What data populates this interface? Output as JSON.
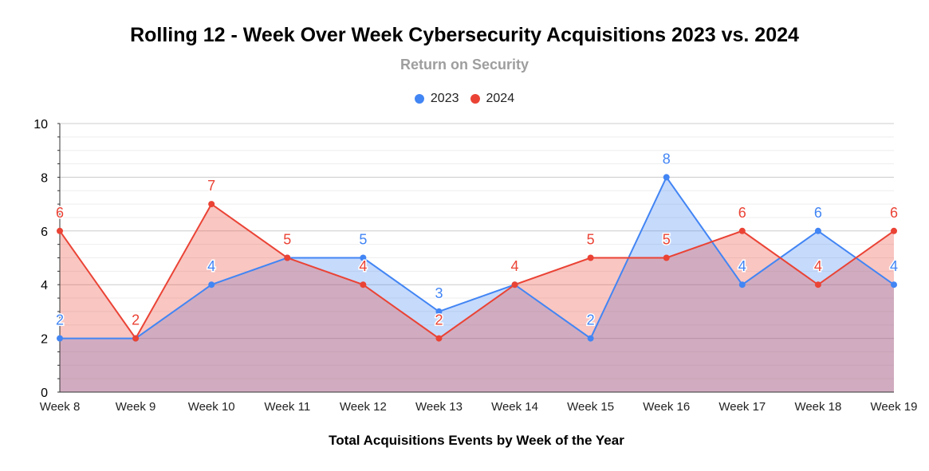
{
  "chart_data": {
    "type": "area",
    "title": "Rolling 12 - Week Over Week Cybersecurity Acquisitions 2023 vs. 2024",
    "subtitle": "Return on Security",
    "xlabel": "Total Acquisitions Events by Week of the Year",
    "ylabel": "",
    "ylim": [
      0,
      10
    ],
    "yticks": [
      0,
      2,
      4,
      6,
      8,
      10
    ],
    "grid": true,
    "legend_position": "top-center",
    "categories": [
      "Week 8",
      "Week 9",
      "Week 10",
      "Week 11",
      "Week 12",
      "Week 13",
      "Week 14",
      "Week 15",
      "Week 16",
      "Week 17",
      "Week 18",
      "Week 19"
    ],
    "series": [
      {
        "name": "2023",
        "color": "#4285f4",
        "values": [
          2,
          2,
          4,
          5,
          5,
          3,
          4,
          2,
          8,
          4,
          6,
          4
        ]
      },
      {
        "name": "2024",
        "color": "#ea4335",
        "values": [
          6,
          2,
          7,
          5,
          4,
          2,
          4,
          5,
          5,
          6,
          4,
          6
        ]
      }
    ]
  }
}
